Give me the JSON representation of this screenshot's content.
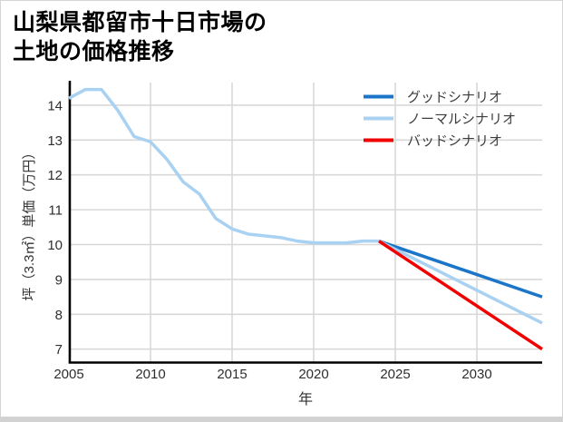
{
  "header": {
    "title_line1": "山梨県都留市十日市場の",
    "title_line2": "土地の価格推移"
  },
  "chart_data": {
    "type": "line",
    "title": "山梨県都留市十日市場の土地の価格推移",
    "xlabel": "年",
    "ylabel": "坪（3.3㎡）単価（万円）",
    "xlim": [
      2005,
      2034
    ],
    "ylim": [
      6.64,
      14.65
    ],
    "xticks": [
      2005,
      2010,
      2015,
      2020,
      2025,
      2030
    ],
    "yticks": [
      7,
      8,
      9,
      10,
      11,
      12,
      13,
      14
    ],
    "grid": true,
    "legend_position": "top-right-inside",
    "series": [
      {
        "id": "good",
        "name": "グッドシナリオ",
        "color": "#1b75c8",
        "x": [
          2024,
          2034
        ],
        "values": [
          10.1,
          8.5
        ]
      },
      {
        "id": "normal",
        "name": "ノーマルシナリオ",
        "color": "#a8d1f2",
        "x": [
          2005,
          2006,
          2007,
          2008,
          2009,
          2010,
          2011,
          2012,
          2013,
          2014,
          2015,
          2016,
          2017,
          2018,
          2019,
          2020,
          2021,
          2022,
          2023,
          2024,
          2034
        ],
        "values": [
          14.2,
          14.45,
          14.45,
          13.85,
          13.1,
          12.95,
          12.45,
          11.8,
          11.45,
          10.75,
          10.45,
          10.3,
          10.25,
          10.2,
          10.1,
          10.05,
          10.05,
          10.05,
          10.1,
          10.1,
          7.75
        ]
      },
      {
        "id": "bad",
        "name": "バッドシナリオ",
        "color": "#f20000",
        "x": [
          2024,
          2034
        ],
        "values": [
          10.1,
          7.0
        ]
      }
    ]
  },
  "colors": {
    "good_scenario": "#1b75c8",
    "normal_scenario": "#a8d1f2",
    "bad_scenario": "#f20000",
    "gridline": "#d8d8d8",
    "axis": "#000000",
    "tick_label": "#2e2e2e",
    "title_text": "#000000",
    "card_background": "#ffffff",
    "page_background": "#d2d2d2"
  }
}
